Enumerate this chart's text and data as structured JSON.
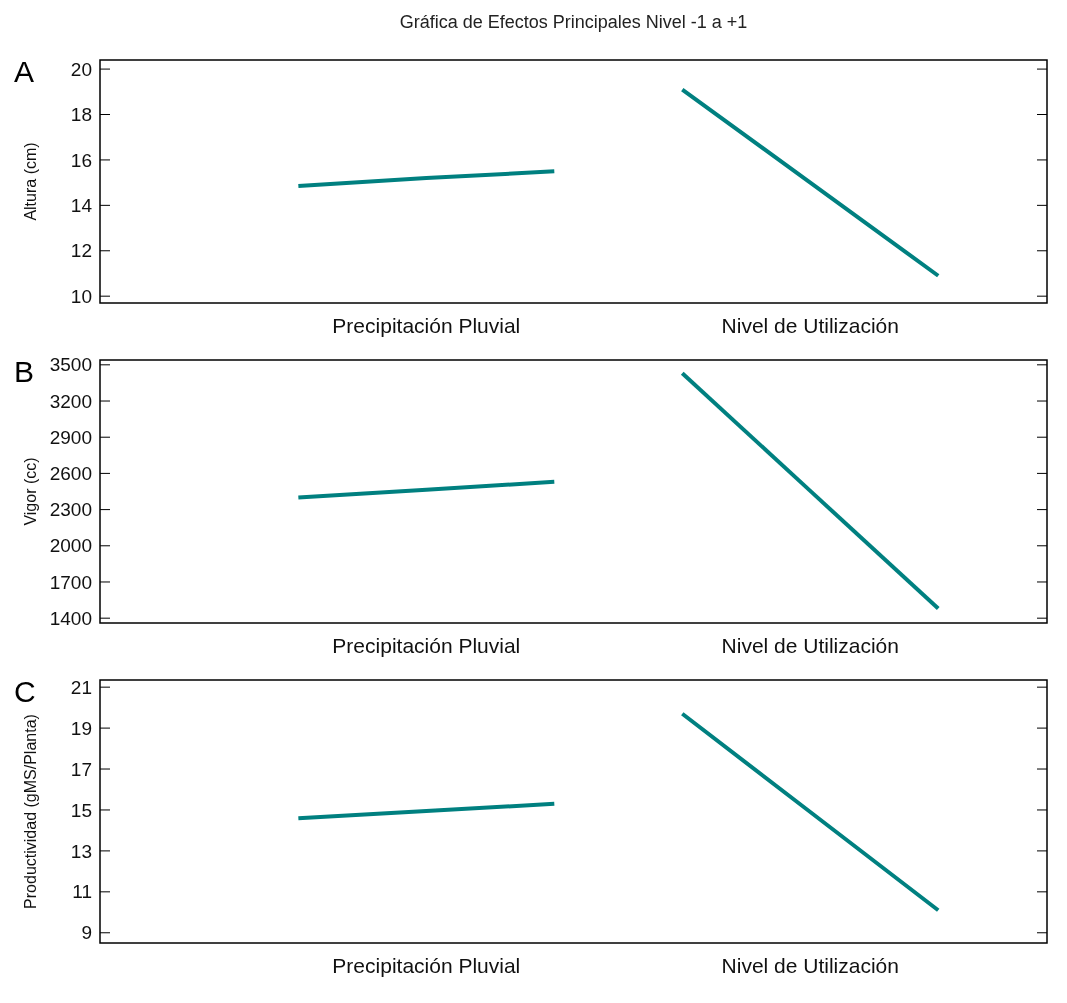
{
  "chart_data": [
    {
      "type": "line",
      "title": "Gráfica de Efectos Principales Nivel -1 a +1",
      "annotations": [
        "A"
      ],
      "ylabel": "Altura (cm)",
      "categories": [
        null,
        "Precipitación Pluvial",
        null,
        null,
        "Nivel de Utilización",
        null
      ],
      "ylim": [
        9.7,
        20.4
      ],
      "yticks": [
        10,
        12,
        14,
        16,
        18,
        20
      ],
      "grid": false,
      "series": [
        {
          "color": "#008080",
          "values": [
            14.85,
            15.2,
            15.5,
            null,
            null,
            null
          ]
        },
        {
          "color": "#008080",
          "values": [
            null,
            null,
            null,
            19.1,
            15,
            10.9
          ]
        }
      ]
    },
    {
      "type": "line",
      "annotations": [
        "B"
      ],
      "ylabel": "Vigor (cc)",
      "categories": [
        null,
        "Precipitación Pluvial",
        null,
        null,
        "Nivel de Utilización",
        null
      ],
      "ylim": [
        1360,
        3540
      ],
      "yticks": [
        1400,
        1700,
        2000,
        2300,
        2600,
        2900,
        3200,
        3500
      ],
      "grid": false,
      "series": [
        {
          "color": "#008080",
          "values": [
            2400,
            2465,
            2530,
            null,
            null,
            null
          ]
        },
        {
          "color": "#008080",
          "values": [
            null,
            null,
            null,
            3430,
            2455,
            1480
          ]
        }
      ]
    },
    {
      "type": "line",
      "annotations": [
        "C"
      ],
      "ylabel": "Productividad (gMS/Planta)",
      "categories": [
        null,
        "Precipitación Pluvial",
        null,
        null,
        "Nivel de Utilización",
        null
      ],
      "ylim": [
        8.5,
        21.35
      ],
      "yticks": [
        9,
        11,
        13,
        15,
        17,
        19,
        21
      ],
      "grid": false,
      "series": [
        {
          "color": "#008080",
          "values": [
            14.6,
            14.95,
            15.3,
            null,
            null,
            null
          ]
        },
        {
          "color": "#008080",
          "values": [
            null,
            null,
            null,
            19.7,
            14.9,
            10.1
          ]
        }
      ]
    }
  ]
}
